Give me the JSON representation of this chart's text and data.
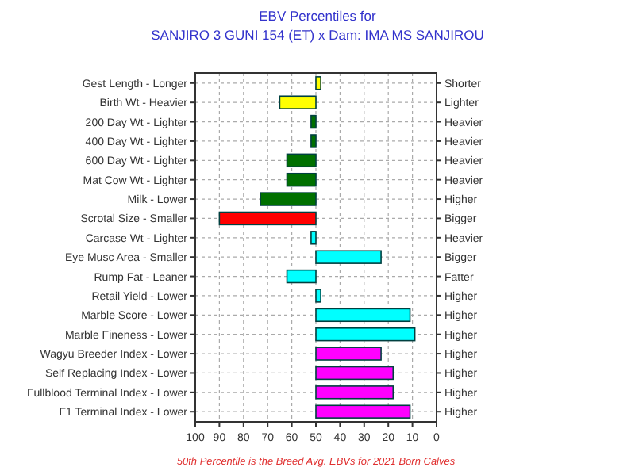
{
  "chart_data": {
    "type": "bar",
    "orientation": "horizontal",
    "title": "EBV Percentiles for",
    "subtitle": "SANJIRO 3 GUNI 154 (ET) x Dam: IMA MS SANJIROU",
    "annotations": [
      "50th Percentile is the Breed Avg. EBVs for 2021 Born Calves"
    ],
    "categories": [
      "Gest Length - Longer",
      "Birth Wt - Heavier",
      "200 Day Wt - Lighter",
      "400 Day Wt - Lighter",
      "600 Day Wt - Lighter",
      "Mat Cow Wt - Lighter",
      "Milk - Lower",
      "Scrotal Size - Smaller",
      "Carcase Wt - Lighter",
      "Eye Musc Area - Smaller",
      "Rump Fat - Leaner",
      "Retail Yield - Lower",
      "Marble Score - Lower",
      "Marble Fineness - Lower",
      "Wagyu Breeder Index - Lower",
      "Self Replacing Index - Lower",
      "Fullblood Terminal Index - Lower",
      "F1 Terminal Index - Lower"
    ],
    "y2_categories": [
      "Shorter",
      "Lighter",
      "Heavier",
      "Heavier",
      "Heavier",
      "Heavier",
      "Higher",
      "Bigger",
      "Heavier",
      "Bigger",
      "Fatter",
      "Higher",
      "Higher",
      "Higher",
      "Higher",
      "Higher",
      "Higher",
      "Higher"
    ],
    "base": [
      50,
      50,
      50,
      50,
      50,
      50,
      50,
      50,
      50,
      50,
      50,
      50,
      50,
      50,
      50,
      50,
      50,
      50
    ],
    "values": [
      -2,
      15,
      2,
      2,
      12,
      12,
      23,
      40,
      2,
      -27,
      12,
      -2,
      -39,
      -41,
      -27,
      -32,
      -32,
      -39
    ],
    "colors": [
      "#ffff00",
      "#ffff00",
      "#007000",
      "#007000",
      "#007000",
      "#007000",
      "#007000",
      "#ff0000",
      "#00ffff",
      "#00ffff",
      "#00ffff",
      "#00ffff",
      "#00ffff",
      "#00ffff",
      "#ff00ff",
      "#ff00ff",
      "#ff00ff",
      "#ff00ff"
    ],
    "xlim": [
      100,
      0
    ],
    "xticks": [
      100,
      90,
      80,
      70,
      60,
      50,
      40,
      30,
      20,
      10,
      0
    ],
    "grid": true
  }
}
